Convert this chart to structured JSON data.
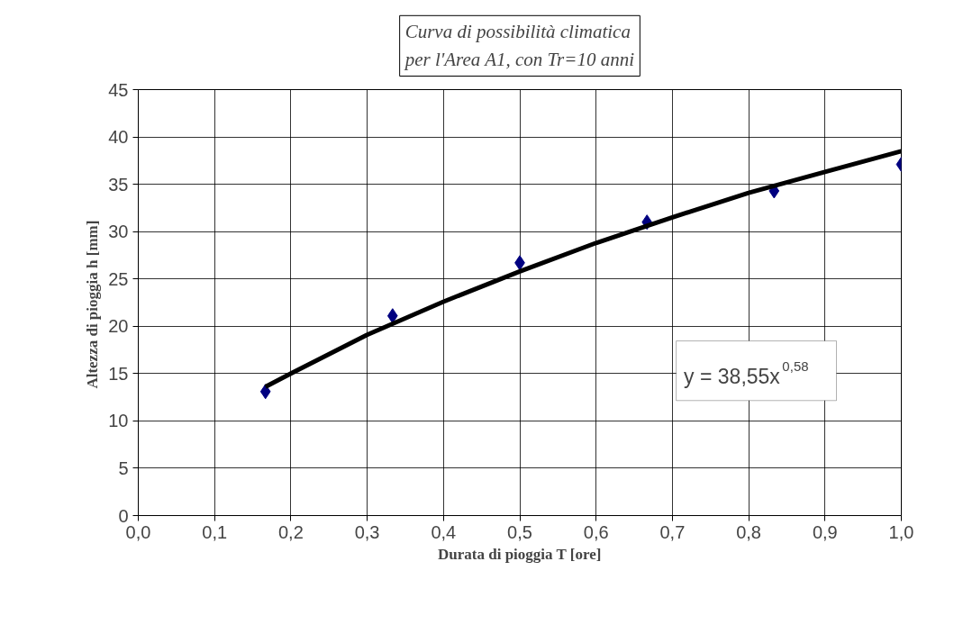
{
  "chart_data": {
    "type": "scatter",
    "title": "Curva di possibilità climatica\nper l'Area A1, con Tr=10 anni",
    "xlabel": "Durata di pioggia T [ore]",
    "ylabel": "Altezza di pioggia  h [mm]",
    "x": [
      0.1667,
      0.3333,
      0.5,
      0.6667,
      0.8333,
      1.0
    ],
    "series": [
      {
        "color": "#000080",
        "marker": "diamond",
        "values": [
          13.1,
          21.1,
          26.7,
          31.0,
          34.3,
          37.1
        ]
      },
      {
        "type": "line",
        "color": "#000000",
        "x": [
          0.1667,
          0.2,
          0.3,
          0.4,
          0.5,
          0.6,
          0.7,
          0.8,
          0.9,
          1.0
        ],
        "values": [
          13.6,
          15.0,
          19.1,
          22.6,
          25.8,
          28.8,
          31.5,
          34.1,
          36.3,
          38.5
        ]
      }
    ],
    "xlim": [
      0,
      1.0
    ],
    "ylim": [
      0,
      45
    ],
    "xticks": [
      {
        "value": 0,
        "label": "0,0"
      },
      {
        "value": 0.1,
        "label": "0,1"
      },
      {
        "value": 0.2,
        "label": "0,2"
      },
      {
        "value": 0.3,
        "label": "0,3"
      },
      {
        "value": 0.4,
        "label": "0,4"
      },
      {
        "value": 0.5,
        "label": "0,5"
      },
      {
        "value": 0.6,
        "label": "0,6"
      },
      {
        "value": 0.7,
        "label": "0,7"
      },
      {
        "value": 0.8,
        "label": "0,8"
      },
      {
        "value": 0.9,
        "label": "0,9"
      },
      {
        "value": 1.0,
        "label": "1,0"
      }
    ],
    "yticks": [
      0,
      5,
      10,
      15,
      20,
      25,
      30,
      35,
      40,
      45
    ],
    "grid": true,
    "annotations": [
      "y = 38,55x$^{0,58}$"
    ]
  }
}
